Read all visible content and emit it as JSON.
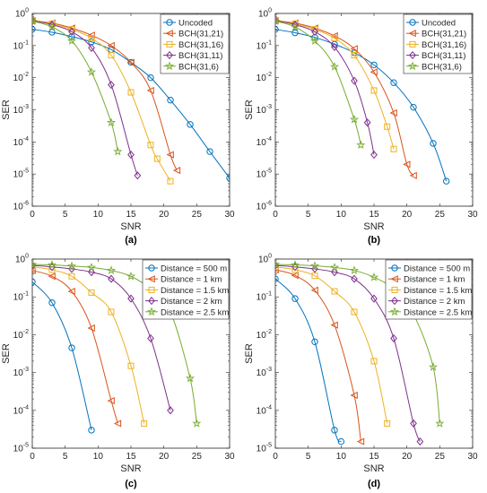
{
  "chart_data": [
    {
      "panel_label": "(a)",
      "type": "line",
      "xlabel": "SNR",
      "ylabel": "SER",
      "xlim": [
        0,
        30
      ],
      "ylim": [
        1e-06,
        1
      ],
      "yscale": "log",
      "x_ticks": [
        "0",
        "5",
        "10",
        "15",
        "20",
        "25",
        "30"
      ],
      "y_ticks": [
        {
          "base": "10",
          "exp": "0"
        },
        {
          "base": "10",
          "exp": "-1"
        },
        {
          "base": "10",
          "exp": "-2"
        },
        {
          "base": "10",
          "exp": "-3"
        },
        {
          "base": "10",
          "exp": "-4"
        },
        {
          "base": "10",
          "exp": "-5"
        },
        {
          "base": "10",
          "exp": "-6"
        }
      ],
      "legend_position": "top-right",
      "series": [
        {
          "name": "Uncoded",
          "color": "#0072BD",
          "marker": "circle",
          "x": [
            0,
            3,
            6,
            9,
            12,
            15,
            18,
            21,
            24,
            27,
            30
          ],
          "y": [
            0.32,
            0.26,
            0.19,
            0.13,
            0.075,
            0.03,
            0.01,
            0.002,
            0.00035,
            5e-05,
            7.5e-06
          ]
        },
        {
          "name": "BCH(31,21)",
          "color": "#D95319",
          "marker": "triangle-left",
          "x": [
            0,
            3,
            6,
            9,
            12,
            15,
            18,
            21,
            22
          ],
          "y": [
            0.6,
            0.5,
            0.35,
            0.21,
            0.1,
            0.03,
            0.004,
            4e-05,
            1.3e-05
          ]
        },
        {
          "name": "BCH(31,16)",
          "color": "#EDB120",
          "marker": "square",
          "x": [
            0,
            3,
            6,
            9,
            12,
            15,
            18,
            19,
            21
          ],
          "y": [
            0.62,
            0.48,
            0.32,
            0.17,
            0.05,
            0.0035,
            8e-05,
            3e-05,
            6e-06
          ]
        },
        {
          "name": "BCH(31,11)",
          "color": "#7E2F8E",
          "marker": "diamond",
          "x": [
            0,
            3,
            6,
            9,
            12,
            15,
            16
          ],
          "y": [
            0.6,
            0.45,
            0.27,
            0.085,
            0.006,
            4e-05,
            9e-06
          ]
        },
        {
          "name": "BCH(31,6)",
          "color": "#77AC30",
          "marker": "star",
          "x": [
            0,
            3,
            6,
            9,
            12,
            13
          ],
          "y": [
            0.58,
            0.38,
            0.14,
            0.015,
            0.0004,
            5e-05
          ]
        }
      ]
    },
    {
      "panel_label": "(b)",
      "type": "line",
      "xlabel": "SNR",
      "ylabel": "SER",
      "xlim": [
        0,
        30
      ],
      "ylim": [
        1e-06,
        1
      ],
      "yscale": "log",
      "x_ticks": [
        "0",
        "5",
        "10",
        "15",
        "20",
        "25",
        "30"
      ],
      "y_ticks": [
        {
          "base": "10",
          "exp": "0"
        },
        {
          "base": "10",
          "exp": "-1"
        },
        {
          "base": "10",
          "exp": "-2"
        },
        {
          "base": "10",
          "exp": "-3"
        },
        {
          "base": "10",
          "exp": "-4"
        },
        {
          "base": "10",
          "exp": "-5"
        },
        {
          "base": "10",
          "exp": "-6"
        }
      ],
      "legend_position": "top-right",
      "series": [
        {
          "name": "Uncoded",
          "color": "#0072BD",
          "marker": "circle",
          "x": [
            0,
            3,
            6,
            9,
            12,
            15,
            18,
            21,
            24,
            26
          ],
          "y": [
            0.32,
            0.25,
            0.18,
            0.11,
            0.06,
            0.025,
            0.007,
            0.0012,
            9e-05,
            6e-06
          ]
        },
        {
          "name": "BCH(31,21)",
          "color": "#D95319",
          "marker": "triangle-left",
          "x": [
            0,
            3,
            6,
            9,
            12,
            15,
            18,
            20,
            21
          ],
          "y": [
            0.6,
            0.5,
            0.35,
            0.2,
            0.08,
            0.015,
            0.0008,
            2e-05,
            9e-06
          ]
        },
        {
          "name": "BCH(31,16)",
          "color": "#EDB120",
          "marker": "square",
          "x": [
            0,
            3,
            6,
            9,
            12,
            15,
            17,
            18
          ],
          "y": [
            0.62,
            0.48,
            0.32,
            0.17,
            0.05,
            0.004,
            0.0003,
            6e-05
          ]
        },
        {
          "name": "BCH(31,11)",
          "color": "#7E2F8E",
          "marker": "diamond",
          "x": [
            0,
            3,
            6,
            9,
            12,
            14,
            15
          ],
          "y": [
            0.6,
            0.45,
            0.27,
            0.09,
            0.008,
            0.0004,
            4e-05
          ]
        },
        {
          "name": "BCH(31,6)",
          "color": "#77AC30",
          "marker": "star",
          "x": [
            0,
            3,
            6,
            9,
            12,
            13
          ],
          "y": [
            0.58,
            0.38,
            0.14,
            0.022,
            0.0005,
            8e-05
          ]
        }
      ]
    },
    {
      "panel_label": "(c)",
      "type": "line",
      "xlabel": "SNR",
      "ylabel": "SER",
      "xlim": [
        0,
        30
      ],
      "ylim": [
        1e-05,
        1
      ],
      "yscale": "log",
      "x_ticks": [
        "0",
        "5",
        "10",
        "15",
        "20",
        "25",
        "30"
      ],
      "y_ticks": [
        {
          "base": "10",
          "exp": "0"
        },
        {
          "base": "10",
          "exp": "-1"
        },
        {
          "base": "10",
          "exp": "-2"
        },
        {
          "base": "10",
          "exp": "-3"
        },
        {
          "base": "10",
          "exp": "-4"
        },
        {
          "base": "10",
          "exp": "-5"
        }
      ],
      "legend_position": "top-right",
      "series": [
        {
          "name": "Distance = 500 m",
          "color": "#0072BD",
          "marker": "circle",
          "x": [
            0,
            3,
            6,
            9
          ],
          "y": [
            0.25,
            0.07,
            0.0045,
            3e-05
          ]
        },
        {
          "name": "Distance = 1 km",
          "color": "#D95319",
          "marker": "triangle-left",
          "x": [
            0,
            3,
            6,
            9,
            12,
            13
          ],
          "y": [
            0.5,
            0.35,
            0.14,
            0.015,
            0.00018,
            4.5e-05
          ]
        },
        {
          "name": "Distance = 1.5 km",
          "color": "#EDB120",
          "marker": "square",
          "x": [
            0,
            3,
            6,
            9,
            12,
            15,
            17
          ],
          "y": [
            0.62,
            0.52,
            0.35,
            0.13,
            0.04,
            0.0015,
            4.5e-05
          ]
        },
        {
          "name": "Distance = 2 km",
          "color": "#7E2F8E",
          "marker": "diamond",
          "x": [
            0,
            3,
            6,
            9,
            12,
            15,
            18,
            21
          ],
          "y": [
            0.68,
            0.62,
            0.55,
            0.45,
            0.3,
            0.09,
            0.008,
            0.0001
          ]
        },
        {
          "name": "Distance = 2.5 km",
          "color": "#77AC30",
          "marker": "star",
          "x": [
            0,
            3,
            6,
            9,
            12,
            15,
            18,
            21,
            24,
            25
          ],
          "y": [
            0.72,
            0.7,
            0.65,
            0.6,
            0.5,
            0.35,
            0.16,
            0.04,
            0.0007,
            4.5e-05
          ]
        }
      ]
    },
    {
      "panel_label": "(d)",
      "type": "line",
      "xlabel": "SNR",
      "ylabel": "SER",
      "xlim": [
        0,
        30
      ],
      "ylim": [
        1e-05,
        1
      ],
      "yscale": "log",
      "x_ticks": [
        "0",
        "5",
        "10",
        "15",
        "20",
        "25",
        "30"
      ],
      "y_ticks": [
        {
          "base": "10",
          "exp": "0"
        },
        {
          "base": "10",
          "exp": "-1"
        },
        {
          "base": "10",
          "exp": "-2"
        },
        {
          "base": "10",
          "exp": "-3"
        },
        {
          "base": "10",
          "exp": "-4"
        },
        {
          "base": "10",
          "exp": "-5"
        }
      ],
      "legend_position": "top-right",
      "series": [
        {
          "name": "Distance = 500 m",
          "color": "#0072BD",
          "marker": "circle",
          "x": [
            0,
            3,
            6,
            9,
            10
          ],
          "y": [
            0.3,
            0.09,
            0.0065,
            3e-05,
            1.5e-05
          ]
        },
        {
          "name": "Distance = 1 km",
          "color": "#D95319",
          "marker": "triangle-left",
          "x": [
            0,
            3,
            6,
            9,
            12,
            13
          ],
          "y": [
            0.52,
            0.37,
            0.15,
            0.018,
            0.00025,
            1.5e-05
          ]
        },
        {
          "name": "Distance = 1.5 km",
          "color": "#EDB120",
          "marker": "square",
          "x": [
            0,
            3,
            6,
            9,
            12,
            15,
            17
          ],
          "y": [
            0.62,
            0.52,
            0.36,
            0.14,
            0.04,
            0.002,
            4.5e-05
          ]
        },
        {
          "name": "Distance = 2 km",
          "color": "#7E2F8E",
          "marker": "diamond",
          "x": [
            0,
            3,
            6,
            9,
            12,
            15,
            18,
            21,
            22
          ],
          "y": [
            0.68,
            0.62,
            0.55,
            0.45,
            0.3,
            0.09,
            0.008,
            4.5e-05,
            1.5e-05
          ]
        },
        {
          "name": "Distance = 2.5 km",
          "color": "#77AC30",
          "marker": "star",
          "x": [
            0,
            3,
            6,
            9,
            12,
            15,
            18,
            21,
            24,
            25
          ],
          "y": [
            0.72,
            0.7,
            0.66,
            0.6,
            0.5,
            0.33,
            0.16,
            0.035,
            0.0014,
            4.5e-05
          ]
        }
      ]
    }
  ]
}
